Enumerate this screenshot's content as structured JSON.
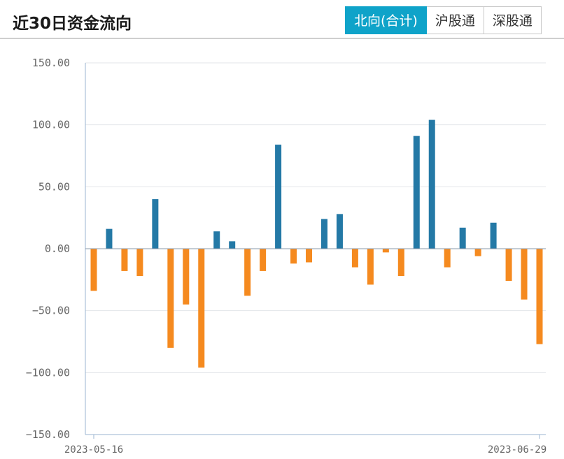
{
  "header": {
    "title": "近30日资金流向",
    "tabs": [
      {
        "label": "北向(合计)",
        "active": true
      },
      {
        "label": "沪股通",
        "active": false
      },
      {
        "label": "深股通",
        "active": false
      }
    ]
  },
  "colors": {
    "positive": "#2479a6",
    "negative": "#f58a1f",
    "tab_active": "#0fa3c9",
    "grid": "#e3e6ea",
    "axis": "#9bb6d2"
  },
  "chart_data": {
    "type": "bar",
    "x_start_label": "2023-05-16",
    "x_end_label": "2023-06-29",
    "ylim": [
      -150,
      150
    ],
    "yticks": [
      150,
      100,
      50,
      0,
      -50,
      -100,
      -150
    ],
    "ytick_labels": [
      "150.00",
      "100.00",
      "50.00",
      "0.00",
      "−50.00",
      "−100.00",
      "−150.00"
    ],
    "grid": true,
    "values": [
      -34,
      16,
      -18,
      -22,
      40,
      -80,
      -45,
      -96,
      14,
      6,
      -38,
      -18,
      84,
      -12,
      -11,
      24,
      28,
      -15,
      -29,
      -3,
      -22,
      91,
      104,
      -15,
      17,
      -6,
      21,
      -26,
      -41,
      -77
    ]
  }
}
